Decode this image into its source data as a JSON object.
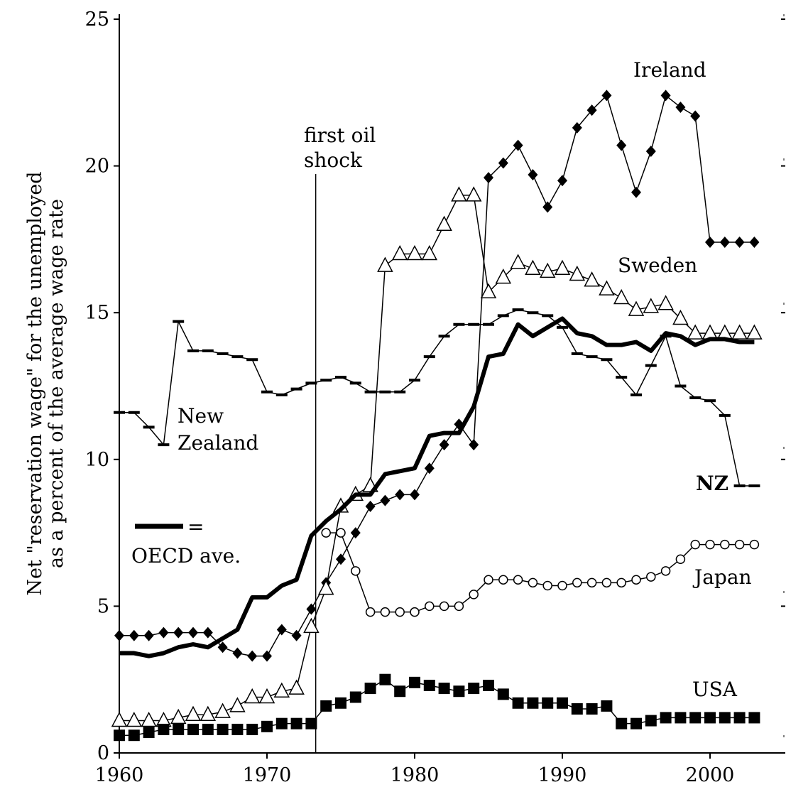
{
  "chart_data": {
    "type": "line",
    "title": "",
    "xlabel": "",
    "ylabel_line1": "Net \"reservation wage\" for the unemployed",
    "ylabel_line2": "as a percent of the average wage rate",
    "xlim": [
      1960,
      2003
    ],
    "ylim": [
      0,
      25
    ],
    "xticks": [
      1960,
      1970,
      1980,
      1990,
      2000
    ],
    "yticks": [
      0,
      5,
      10,
      15,
      20,
      25
    ],
    "grid": false,
    "legend": "inline labels",
    "x": [
      1960,
      1961,
      1962,
      1963,
      1964,
      1965,
      1966,
      1967,
      1968,
      1969,
      1970,
      1971,
      1972,
      1973,
      1974,
      1975,
      1976,
      1977,
      1978,
      1979,
      1980,
      1981,
      1982,
      1983,
      1984,
      1985,
      1986,
      1987,
      1988,
      1989,
      1990,
      1991,
      1992,
      1993,
      1994,
      1995,
      1996,
      1997,
      1998,
      1999,
      2000,
      2001,
      2002,
      2003
    ],
    "series": [
      {
        "name": "Ireland",
        "marker": "diamond",
        "color": "#000000",
        "values": [
          4.0,
          4.0,
          4.0,
          4.1,
          4.1,
          4.1,
          4.1,
          3.6,
          3.4,
          3.3,
          3.3,
          4.2,
          4.0,
          4.9,
          5.8,
          6.6,
          7.5,
          8.4,
          8.6,
          8.8,
          8.8,
          9.7,
          10.5,
          11.2,
          10.5,
          19.6,
          20.1,
          20.7,
          19.7,
          18.6,
          19.5,
          21.3,
          21.9,
          22.4,
          20.7,
          19.1,
          20.5,
          22.4,
          22.0,
          21.7,
          17.4,
          17.4,
          17.4,
          17.4
        ]
      },
      {
        "name": "Sweden",
        "marker": "triangle",
        "color": "#000000",
        "values": [
          1.1,
          1.1,
          1.1,
          1.1,
          1.2,
          1.3,
          1.3,
          1.4,
          1.6,
          1.9,
          1.9,
          2.1,
          2.2,
          4.3,
          5.6,
          8.4,
          8.8,
          9.1,
          16.6,
          17.0,
          17.0,
          17.0,
          18.0,
          19.0,
          19.0,
          15.7,
          16.2,
          16.7,
          16.5,
          16.4,
          16.5,
          16.3,
          16.1,
          15.8,
          15.5,
          15.1,
          15.2,
          15.3,
          14.8,
          14.3,
          14.3,
          14.3,
          14.3,
          14.3
        ]
      },
      {
        "name": "NZ",
        "marker": "dash",
        "color": "#000000",
        "values": [
          11.6,
          11.6,
          11.1,
          10.5,
          14.7,
          13.7,
          13.7,
          13.6,
          13.5,
          13.4,
          12.3,
          12.2,
          12.4,
          12.6,
          12.7,
          12.8,
          12.6,
          12.3,
          12.3,
          12.3,
          12.7,
          13.5,
          14.2,
          14.6,
          14.6,
          14.6,
          14.9,
          15.1,
          15.0,
          14.9,
          14.5,
          13.6,
          13.5,
          13.4,
          12.8,
          12.2,
          13.2,
          14.2,
          12.5,
          12.1,
          12.0,
          11.5,
          9.1,
          9.1
        ]
      },
      {
        "name": "OECD ave.",
        "marker": "none",
        "color": "#000000",
        "values": [
          3.4,
          3.4,
          3.3,
          3.4,
          3.6,
          3.7,
          3.6,
          3.9,
          4.2,
          5.3,
          5.3,
          5.7,
          5.9,
          7.4,
          7.9,
          8.3,
          8.8,
          8.8,
          9.5,
          9.6,
          9.7,
          10.8,
          10.9,
          10.9,
          11.8,
          13.5,
          13.6,
          14.6,
          14.2,
          14.5,
          14.8,
          14.3,
          14.2,
          13.9,
          13.9,
          14.0,
          13.7,
          14.3,
          14.2,
          13.9,
          14.1,
          14.1,
          14.0,
          14.0
        ]
      },
      {
        "name": "Japan",
        "marker": "circle",
        "color": "#000000",
        "values": [
          null,
          null,
          null,
          null,
          null,
          null,
          null,
          null,
          null,
          null,
          null,
          null,
          null,
          null,
          7.5,
          7.5,
          6.2,
          4.8,
          4.8,
          4.8,
          4.8,
          5.0,
          5.0,
          5.0,
          5.4,
          5.9,
          5.9,
          5.9,
          5.8,
          5.7,
          5.7,
          5.8,
          5.8,
          5.8,
          5.8,
          5.9,
          6.0,
          6.2,
          6.6,
          7.1,
          7.1,
          7.1,
          7.1,
          7.1
        ]
      },
      {
        "name": "USA",
        "marker": "square",
        "color": "#000000",
        "values": [
          0.6,
          0.6,
          0.7,
          0.8,
          0.8,
          0.8,
          0.8,
          0.8,
          0.8,
          0.8,
          0.9,
          1.0,
          1.0,
          1.0,
          1.6,
          1.7,
          1.9,
          2.2,
          2.5,
          2.1,
          2.4,
          2.3,
          2.2,
          2.1,
          2.2,
          2.3,
          2.0,
          1.7,
          1.7,
          1.7,
          1.7,
          1.5,
          1.5,
          1.6,
          1.0,
          1.0,
          1.1,
          1.2,
          1.2,
          1.2,
          1.2,
          1.2,
          1.2,
          1.2
        ]
      }
    ],
    "annotations": {
      "ireland": "Ireland",
      "sweden": "Sweden",
      "nz": "NZ",
      "new_zealand_line1": "New",
      "new_zealand_line2": "Zealand",
      "japan": "Japan",
      "usa": "USA",
      "oecd_legend_eq": "=",
      "oecd_legend_label": "OECD ave.",
      "oil_shock_line1": "first oil",
      "oil_shock_line2": "shock"
    },
    "oil_shock_year": 1973.3
  }
}
